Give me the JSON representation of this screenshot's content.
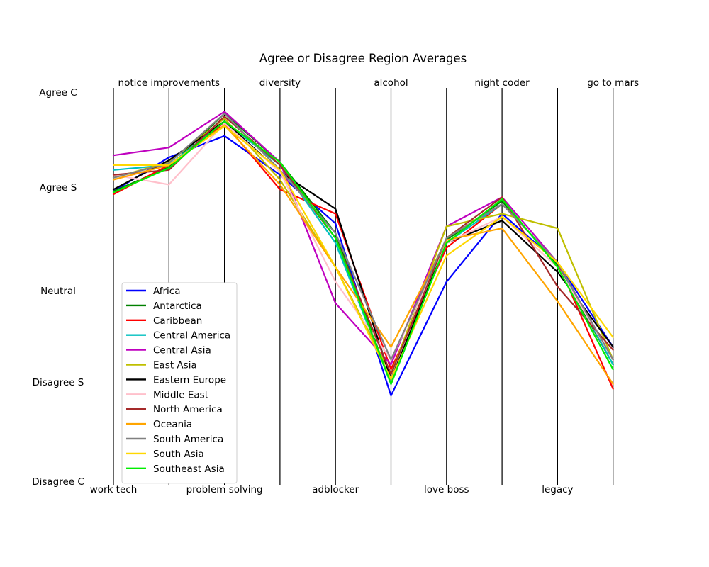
{
  "chart_data": {
    "type": "line",
    "title": "Agree or Disagree Region Averages",
    "categories": [
      "work tech",
      "notice improvements",
      "problem solving",
      "diversity",
      "adblocker",
      "alcohol",
      "love boss",
      "night coder",
      "legacy",
      "go to mars"
    ],
    "y_levels": [
      "Disagree C",
      "Disagree S",
      "Neutral",
      "Agree S",
      "Agree C"
    ],
    "ylim": [
      1,
      5
    ],
    "grid": false,
    "legend": "lower-left",
    "series": [
      {
        "name": "Africa",
        "color": "#0000ff",
        "values": [
          3.98,
          4.33,
          4.55,
          4.15,
          3.65,
          1.88,
          3.05,
          3.75,
          3.25,
          2.38
        ]
      },
      {
        "name": "Antarctica",
        "color": "#008000",
        "values": [
          3.98,
          4.23,
          4.78,
          4.28,
          3.55,
          2.0,
          3.48,
          3.88,
          3.22,
          2.2
        ]
      },
      {
        "name": "Caribbean",
        "color": "#ff0000",
        "values": [
          3.95,
          4.25,
          4.68,
          4.0,
          3.75,
          2.15,
          3.4,
          3.85,
          3.25,
          1.95
        ]
      },
      {
        "name": "Central America",
        "color": "#00bfbf",
        "values": [
          4.2,
          4.25,
          4.7,
          4.25,
          3.45,
          2.0,
          3.45,
          3.85,
          3.25,
          2.2
        ]
      },
      {
        "name": "Central Asia",
        "color": "#bf00bf",
        "values": [
          4.35,
          4.43,
          4.8,
          4.28,
          2.83,
          2.2,
          3.62,
          3.92,
          3.25,
          2.25
        ]
      },
      {
        "name": "East Asia",
        "color": "#bfbf00",
        "values": [
          4.12,
          4.28,
          4.73,
          4.1,
          3.2,
          2.1,
          3.62,
          3.75,
          3.6,
          2.25
        ]
      },
      {
        "name": "Eastern Europe",
        "color": "#000000",
        "values": [
          4.0,
          4.3,
          4.7,
          4.18,
          3.8,
          2.05,
          3.45,
          3.68,
          3.15,
          2.38
        ]
      },
      {
        "name": "Middle East",
        "color": "#ffc0cb",
        "values": [
          4.15,
          4.05,
          4.68,
          4.18,
          3.05,
          2.25,
          3.45,
          3.72,
          3.2,
          2.25
        ]
      },
      {
        "name": "North America",
        "color": "#a52a2a",
        "values": [
          4.15,
          4.2,
          4.75,
          4.25,
          3.5,
          2.1,
          3.5,
          3.92,
          3.0,
          2.35
        ]
      },
      {
        "name": "Oceania",
        "color": "#ffa500",
        "values": [
          4.1,
          4.25,
          4.66,
          4.05,
          3.2,
          2.38,
          3.48,
          3.6,
          2.85,
          2.0
        ]
      },
      {
        "name": "South America",
        "color": "#808080",
        "values": [
          4.12,
          4.27,
          4.78,
          4.2,
          3.55,
          2.25,
          3.5,
          3.85,
          3.25,
          2.25
        ]
      },
      {
        "name": "South Asia",
        "color": "#ffd700",
        "values": [
          4.25,
          4.25,
          4.65,
          4.2,
          3.2,
          2.05,
          3.32,
          3.72,
          3.25,
          2.48
        ]
      },
      {
        "name": "Southeast Asia",
        "color": "#00ee00",
        "values": [
          3.97,
          4.22,
          4.7,
          4.28,
          3.5,
          2.0,
          3.45,
          3.9,
          3.2,
          2.15
        ]
      }
    ]
  }
}
